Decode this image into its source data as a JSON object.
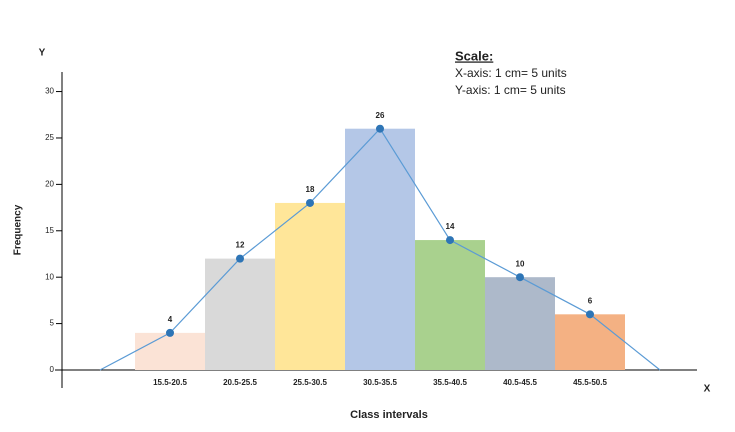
{
  "chart_data": {
    "type": "bar",
    "x_label": "Class intervals",
    "y_label": "Frequency",
    "x_axis_letter": "X",
    "y_axis_letter": "Y",
    "annotation": {
      "title": "Scale:",
      "lines": [
        "X-axis: 1 cm= 5 units",
        "Y-axis: 1 cm= 5 units"
      ]
    },
    "categories": [
      "15.5-20.5",
      "20.5-25.5",
      "25.5-30.5",
      "30.5-35.5",
      "35.5-40.5",
      "40.5-45.5",
      "45.5-50.5"
    ],
    "values": [
      4,
      12,
      18,
      26,
      14,
      10,
      6
    ],
    "colors": [
      "#fbe3d6",
      "#d9d9d9",
      "#ffe699",
      "#b4c7e7",
      "#a9d18e",
      "#adb9ca",
      "#f4b183"
    ],
    "polygon": {
      "color": "#5b9bd5",
      "marker_color": "#2e75b6",
      "values": [
        0,
        4,
        12,
        18,
        26,
        14,
        10,
        6,
        0
      ]
    },
    "ylim": [
      0,
      32
    ],
    "yticks": [
      0,
      5,
      10,
      15,
      20,
      25,
      30
    ],
    "grid": false
  }
}
